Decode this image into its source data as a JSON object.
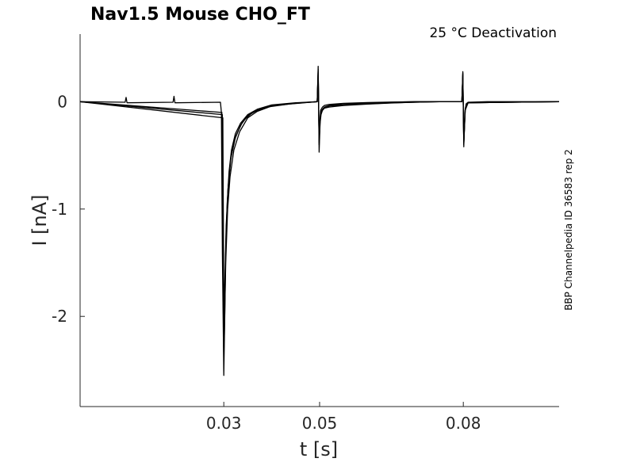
{
  "chart_data": {
    "type": "line",
    "title": "Nav1.5  Mouse  CHO_FT",
    "annotation": "25 °C  Deactivation",
    "side_annotation": "BBP Channelpedia ID 36583 rep 2",
    "xlabel": "t [s]",
    "ylabel": "I [nA]",
    "xlim": [
      0.0,
      0.1
    ],
    "ylim": [
      -2.84,
      0.63
    ],
    "x_ticks": [
      0.03,
      0.05,
      0.08
    ],
    "x_tick_labels": [
      "0.03",
      "0.05",
      "0.08"
    ],
    "y_ticks": [
      -2,
      -1,
      0
    ],
    "y_tick_labels": [
      "-2",
      "-1",
      "0"
    ],
    "grid": false,
    "series": [
      {
        "values_x": [
          0,
          0.0094,
          0.0096,
          0.0098,
          0.0194,
          0.0196,
          0.0198,
          0.0293,
          0.0295,
          0.0297,
          0.03,
          0.0302,
          0.0304,
          0.0307,
          0.0311,
          0.0316,
          0.0324,
          0.0335,
          0.035,
          0.037,
          0.04,
          0.045,
          0.0495,
          0.0497,
          0.0499,
          0.0501,
          0.0503,
          0.0506,
          0.051,
          0.052,
          0.055,
          0.06,
          0.065,
          0.07,
          0.075,
          0.0797,
          0.0799,
          0.0801,
          0.0803,
          0.0806,
          0.081,
          0.085,
          0.09,
          0.1
        ],
        "values_y": [
          0,
          -0.005,
          0.04,
          -0.01,
          -0.005,
          0.05,
          -0.01,
          -0.005,
          -0.1,
          -1.4,
          -2.55,
          -2.0,
          -1.4,
          -0.95,
          -0.65,
          -0.45,
          -0.3,
          -0.2,
          -0.12,
          -0.07,
          -0.03,
          -0.01,
          0.0,
          0.33,
          -0.47,
          -0.2,
          -0.12,
          -0.08,
          -0.06,
          -0.04,
          -0.03,
          -0.02,
          -0.01,
          -0.005,
          0.0,
          0.0,
          0.28,
          -0.42,
          -0.1,
          -0.02,
          -0.005,
          0.0,
          0.0,
          0.0
        ]
      },
      {
        "values_x": [
          0,
          0.0296,
          0.0298,
          0.03,
          0.0302,
          0.0305,
          0.0309,
          0.0314,
          0.0322,
          0.0335,
          0.035,
          0.037,
          0.04,
          0.045,
          0.0495,
          0.0497,
          0.0499,
          0.0501,
          0.0504,
          0.051,
          0.052,
          0.055,
          0.06,
          0.065,
          0.07,
          0.075,
          0.0797,
          0.0799,
          0.0801,
          0.0804,
          0.081,
          0.1
        ],
        "values_y": [
          0,
          -0.1,
          -1.5,
          -2.4,
          -1.8,
          -1.2,
          -0.8,
          -0.55,
          -0.36,
          -0.22,
          -0.13,
          -0.08,
          -0.035,
          -0.012,
          0.0,
          0.3,
          -0.4,
          -0.15,
          -0.09,
          -0.06,
          -0.05,
          -0.035,
          -0.022,
          -0.012,
          -0.005,
          0.0,
          0.0,
          0.25,
          -0.38,
          -0.06,
          -0.01,
          0.0
        ]
      },
      {
        "values_x": [
          0,
          0.0297,
          0.0299,
          0.0301,
          0.0304,
          0.0308,
          0.0313,
          0.0321,
          0.0333,
          0.035,
          0.037,
          0.04,
          0.045,
          0.0495,
          0.0497,
          0.0499,
          0.0502,
          0.0506,
          0.051,
          0.052,
          0.055,
          0.06,
          0.065,
          0.07,
          0.075,
          0.0797,
          0.0799,
          0.0801,
          0.0804,
          0.081,
          0.1
        ],
        "values_y": [
          0,
          -0.12,
          -1.7,
          -2.2,
          -1.5,
          -1.0,
          -0.7,
          -0.45,
          -0.28,
          -0.15,
          -0.09,
          -0.04,
          -0.015,
          0.0,
          0.28,
          -0.38,
          -0.1,
          -0.07,
          -0.05,
          -0.035,
          -0.02,
          -0.012,
          -0.005,
          0.0,
          0.0,
          0.0,
          0.27,
          -0.4,
          -0.08,
          -0.01,
          0.0
        ]
      },
      {
        "values_x": [
          0,
          0.0298,
          0.03,
          0.0302,
          0.0305,
          0.0309,
          0.0315,
          0.0325,
          0.034,
          0.036,
          0.039,
          0.044,
          0.0495,
          0.0497,
          0.0499,
          0.0502,
          0.0506,
          0.051,
          0.052,
          0.055,
          0.06,
          0.065,
          0.07,
          0.075,
          0.0797,
          0.0799,
          0.0801,
          0.0804,
          0.081,
          0.1
        ],
        "values_y": [
          0,
          -0.15,
          -1.9,
          -1.7,
          -1.15,
          -0.8,
          -0.52,
          -0.32,
          -0.18,
          -0.1,
          -0.05,
          -0.02,
          0.0,
          0.26,
          -0.36,
          -0.08,
          -0.05,
          -0.035,
          -0.025,
          -0.015,
          -0.008,
          -0.003,
          0.0,
          0.0,
          0.0,
          0.26,
          -0.39,
          -0.07,
          -0.01,
          0.0
        ]
      }
    ]
  }
}
